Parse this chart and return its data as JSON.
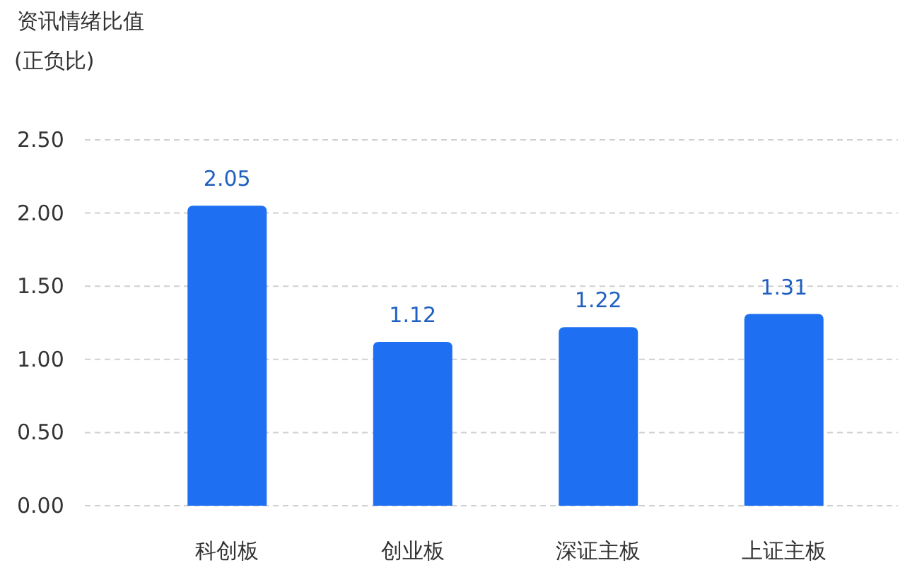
{
  "chart_data": {
    "type": "bar",
    "title": "资讯情绪比值",
    "subtitle": "(正负比)",
    "categories": [
      "科创板",
      "创业板",
      "深证主板",
      "上证主板"
    ],
    "values": [
      2.05,
      1.12,
      1.22,
      1.31
    ],
    "color": "#1f6ff2",
    "ylim": [
      0,
      2.5
    ],
    "yticks": [
      {
        "value": 0,
        "label": "0.00"
      },
      {
        "value": 0.5,
        "label": "0.50"
      },
      {
        "value": 1,
        "label": "1.00"
      },
      {
        "value": 1.5,
        "label": "1.50"
      },
      {
        "value": 2,
        "label": "2.00"
      },
      {
        "value": 2.5,
        "label": "2.50"
      }
    ],
    "grid": "y",
    "data_labels": true
  }
}
